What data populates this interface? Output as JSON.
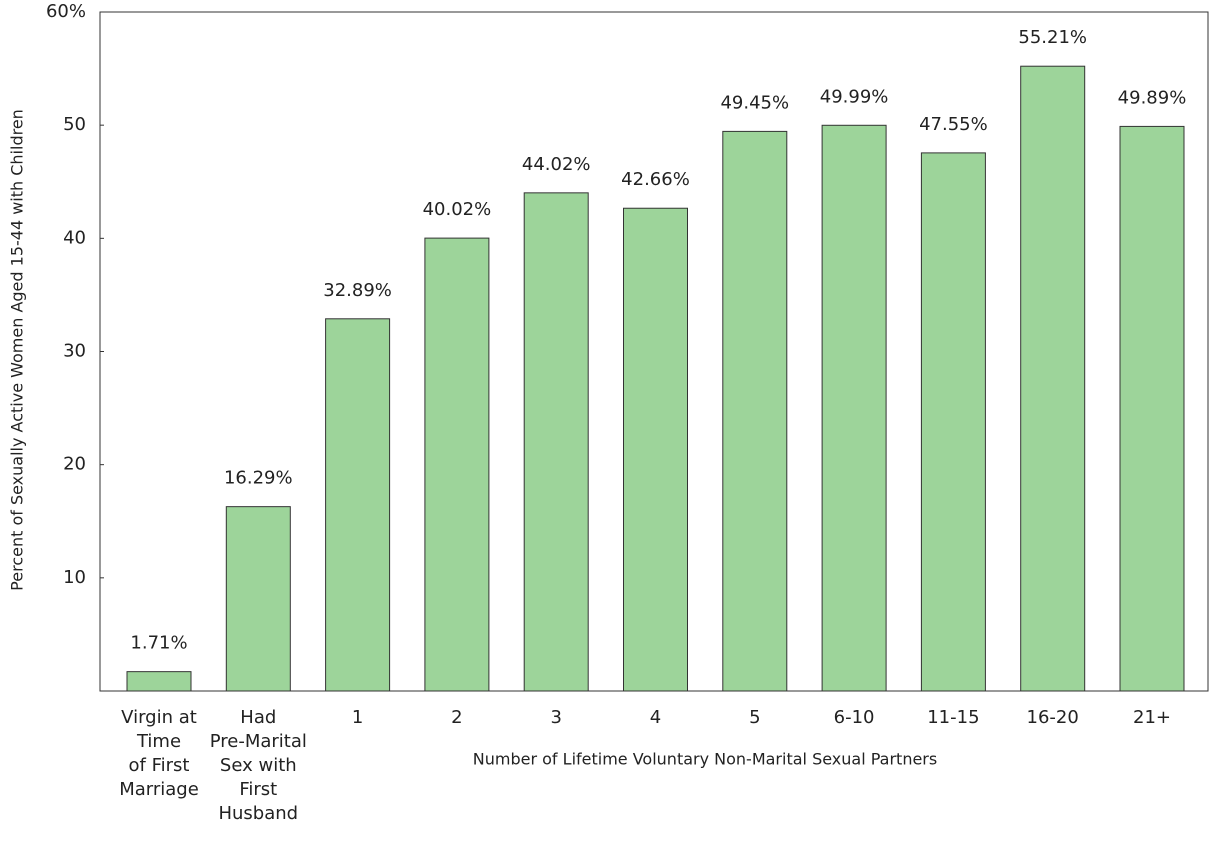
{
  "chart_data": {
    "type": "bar",
    "y_label": "Percent of Sexually Active Women Aged 15-44 with Children",
    "x_label": "Number of Lifetime Voluntary Non-Marital Sexual Partners",
    "categories": [
      "Virgin at\nTime\nof First\nMarriage",
      "Had\nPre-Marital\nSex with\nFirst\nHusband",
      "1",
      "2",
      "3",
      "4",
      "5",
      "6-10",
      "11-15",
      "16-20",
      "21+"
    ],
    "values": [
      1.71,
      16.29,
      32.89,
      40.02,
      44.02,
      42.66,
      49.45,
      49.99,
      47.55,
      55.21,
      49.89
    ],
    "value_labels": [
      "1.71%",
      "16.29%",
      "32.89%",
      "40.02%",
      "44.02%",
      "42.66%",
      "49.45%",
      "49.99%",
      "47.55%",
      "55.21%",
      "49.89%"
    ],
    "color": "#9dd49a",
    "ylim": [
      0,
      60
    ],
    "yticks": [
      10,
      20,
      30,
      40,
      50,
      {
        "value": 60,
        "label": "60%"
      }
    ]
  }
}
